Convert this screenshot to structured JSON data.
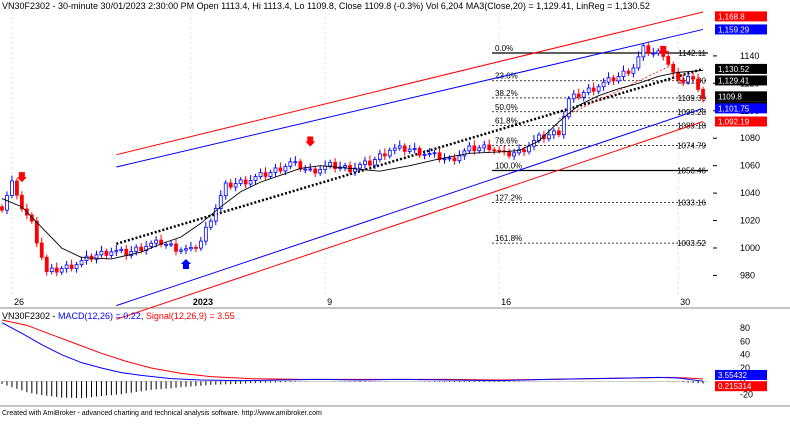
{
  "header": {
    "main": "VN30F2302 - 30-minute 30/01/2023 2:30:00 PM Open 1113.4, Hi 1113.4, Lo 1109.8, Close 1109.8 (-0.3%) Vol 6,204 MA3(Close,20) = 1,129.41, LinReg = 1,130.52"
  },
  "macd_header": {
    "symbol": "VN30F2302 - ",
    "macd_label": "MACD(12,26) = 0.22",
    "sep": ", ",
    "signal_label": "Signal(12,26,9) = 3.55"
  },
  "footer": "Created with AmiBroker - advanced charting and technical analysis software. http://www.amibroker.com",
  "colors": {
    "up": "#0000ff",
    "down": "#ff0000",
    "channel_outer": "#ff0000",
    "channel_inner": "#0000ff",
    "linreg": "#000000",
    "ma": "#000000",
    "macd": "#0000ff",
    "signal": "#ff0000",
    "background": "#ffffff"
  },
  "chart_data": [
    {
      "type": "candlestick",
      "y_ticks": [
        980,
        1000,
        1020,
        1040,
        1060,
        1080,
        1100,
        1120,
        1140
      ],
      "ylim": [
        965,
        1172
      ],
      "x_tick_labels": [
        {
          "label": "26",
          "bar": 2
        },
        {
          "label": "2023",
          "bar": 38
        },
        {
          "label": "9",
          "bar": 65
        },
        {
          "label": "16",
          "bar": 100
        },
        {
          "label": "30",
          "bar": 136
        }
      ],
      "bars_total": 142,
      "fibonacci": [
        {
          "level": "0.0%",
          "value": 1142.11,
          "label": "1142.11"
        },
        {
          "level": "23.6%",
          "value": 1121.9,
          "label": "1121.90"
        },
        {
          "level": "38.2%",
          "value": 1109.39,
          "label": "1109.39"
        },
        {
          "level": "50.0%",
          "value": 1099.28,
          "label": "1099.28"
        },
        {
          "level": "61.8%",
          "value": 1089.18,
          "label": "1089.18"
        },
        {
          "level": "78.6%",
          "value": 1074.79,
          "label": "1074.79"
        },
        {
          "level": "100.0%",
          "value": 1056.46,
          "label": "1056.46"
        },
        {
          "level": "127.2%",
          "value": 1033.16,
          "label": "1033.16"
        },
        {
          "level": "161.8%",
          "value": 1003.52,
          "label": "1003.52"
        }
      ],
      "price_tags": [
        {
          "value": 1168.8,
          "label": "1,168.8",
          "color": "#ff0000"
        },
        {
          "value": 1159.29,
          "label": "1,159.29",
          "color": "#0000ff"
        },
        {
          "value": 1130.52,
          "label": "1,130.52",
          "color": "#000000"
        },
        {
          "value": 1129.41,
          "label": "1,129.41",
          "color": "#000000"
        },
        {
          "value": 1109.8,
          "label": "1109.8",
          "color": "#000000"
        },
        {
          "value": 1109.8,
          "label": "1109.8",
          "color": "#000000"
        },
        {
          "value": 1101.75,
          "label": "1,101.75",
          "color": "#0000ff"
        },
        {
          "value": 1092.19,
          "label": "1,092.19",
          "color": "#ff0000"
        }
      ],
      "channels": {
        "start_bar": 23,
        "end_bar": 141,
        "red_upper": [
          1068,
          1172
        ],
        "blue_upper": [
          1059,
          1159.29
        ],
        "linreg": [
          1003,
          1130.52
        ],
        "blue_lower": [
          958,
          1101.75
        ],
        "red_lower": [
          948,
          1092.19
        ]
      },
      "ma_points": [
        [
          0,
          1036
        ],
        [
          4,
          1030
        ],
        [
          8,
          1015
        ],
        [
          12,
          1000
        ],
        [
          16,
          993
        ],
        [
          22,
          992
        ],
        [
          28,
          997
        ],
        [
          32,
          1003
        ],
        [
          36,
          1008
        ],
        [
          40,
          1018
        ],
        [
          44,
          1030
        ],
        [
          48,
          1041
        ],
        [
          52,
          1048
        ],
        [
          56,
          1053
        ],
        [
          60,
          1058
        ],
        [
          64,
          1060
        ],
        [
          70,
          1058
        ],
        [
          76,
          1056
        ],
        [
          82,
          1060
        ],
        [
          88,
          1065
        ],
        [
          94,
          1069
        ],
        [
          100,
          1070
        ],
        [
          104,
          1071
        ],
        [
          108,
          1078
        ],
        [
          112,
          1092
        ],
        [
          116,
          1104
        ],
        [
          120,
          1111
        ],
        [
          124,
          1116
        ],
        [
          128,
          1120
        ],
        [
          132,
          1125
        ],
        [
          136,
          1128
        ],
        [
          141,
          1129.41
        ]
      ],
      "anchors": [
        [
          0,
          1030
        ],
        [
          2,
          1048
        ],
        [
          3,
          1036
        ],
        [
          6,
          1018
        ],
        [
          9,
          982
        ],
        [
          13,
          986
        ],
        [
          16,
          990
        ],
        [
          19,
          995
        ],
        [
          22,
          998
        ],
        [
          25,
          996
        ],
        [
          29,
          1002
        ],
        [
          32,
          1004
        ],
        [
          35,
          1000
        ],
        [
          38,
          998
        ],
        [
          40,
          1005
        ],
        [
          42,
          1022
        ],
        [
          45,
          1045
        ],
        [
          50,
          1050
        ],
        [
          54,
          1055
        ],
        [
          58,
          1062
        ],
        [
          62,
          1056
        ],
        [
          66,
          1060
        ],
        [
          70,
          1058
        ],
        [
          74,
          1062
        ],
        [
          78,
          1072
        ],
        [
          82,
          1072
        ],
        [
          86,
          1068
        ],
        [
          90,
          1064
        ],
        [
          94,
          1072
        ],
        [
          98,
          1074
        ],
        [
          101,
          1068
        ],
        [
          104,
          1070
        ],
        [
          108,
          1080
        ],
        [
          112,
          1085
        ],
        [
          114,
          1108
        ],
        [
          118,
          1115
        ],
        [
          121,
          1120
        ],
        [
          124,
          1125
        ],
        [
          127,
          1132
        ],
        [
          129,
          1145
        ],
        [
          131,
          1142
        ],
        [
          133,
          1142
        ],
        [
          136,
          1120
        ],
        [
          138,
          1125
        ],
        [
          140,
          1118
        ],
        [
          141,
          1109.8
        ]
      ],
      "arrows": [
        {
          "bar": 4,
          "value": 1048,
          "dir": "down",
          "color": "#ff0000"
        },
        {
          "bar": 37,
          "value": 992,
          "dir": "up",
          "color": "#0000ff"
        },
        {
          "bar": 62,
          "value": 1074,
          "dir": "down",
          "color": "#ff0000"
        },
        {
          "bar": 133,
          "value": 1140,
          "dir": "down",
          "color": "#ff0000"
        }
      ]
    },
    {
      "type": "line",
      "name": "MACD",
      "y_ticks": [
        -20,
        0,
        20,
        40,
        60,
        80
      ],
      "ylim": [
        -25,
        95
      ],
      "macd_points": [
        [
          0,
          88
        ],
        [
          4,
          72
        ],
        [
          8,
          55
        ],
        [
          12,
          40
        ],
        [
          16,
          28
        ],
        [
          20,
          20
        ],
        [
          24,
          13
        ],
        [
          28,
          9
        ],
        [
          34,
          4
        ],
        [
          40,
          2
        ],
        [
          48,
          1
        ],
        [
          56,
          2
        ],
        [
          64,
          3
        ],
        [
          72,
          2
        ],
        [
          80,
          3
        ],
        [
          90,
          2
        ],
        [
          100,
          1
        ],
        [
          110,
          3
        ],
        [
          118,
          4
        ],
        [
          126,
          5
        ],
        [
          132,
          6
        ],
        [
          136,
          5
        ],
        [
          141,
          0.22
        ]
      ],
      "signal_points": [
        [
          0,
          92
        ],
        [
          5,
          84
        ],
        [
          10,
          70
        ],
        [
          15,
          56
        ],
        [
          20,
          42
        ],
        [
          25,
          30
        ],
        [
          30,
          20
        ],
        [
          36,
          12
        ],
        [
          42,
          7
        ],
        [
          50,
          4
        ],
        [
          60,
          3
        ],
        [
          70,
          3
        ],
        [
          80,
          3
        ],
        [
          90,
          3
        ],
        [
          100,
          2
        ],
        [
          110,
          3
        ],
        [
          120,
          4
        ],
        [
          128,
          5
        ],
        [
          134,
          6
        ],
        [
          138,
          5
        ],
        [
          141,
          3.55
        ]
      ],
      "price_tags": [
        {
          "value": 3.55,
          "label": "3.55432",
          "color": "#0000ff"
        },
        {
          "value": 0.22,
          "label": "0.215314",
          "color": "#ff0000"
        }
      ],
      "y_tick_labels": [
        "-20",
        "0",
        "20",
        "40",
        "60",
        "80"
      ]
    }
  ]
}
